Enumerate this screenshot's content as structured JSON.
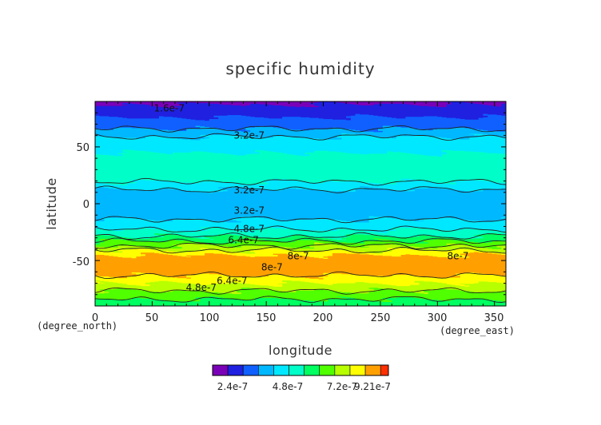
{
  "chart_data": {
    "type": "heatmap",
    "title": "specific humidity",
    "xlabel": "longitude",
    "ylabel": "latitude",
    "x_unit": "(degree_east)",
    "y_unit": "(degree_north)",
    "xlim": [
      0,
      360
    ],
    "ylim": [
      -90,
      90
    ],
    "x_ticks": [
      "0",
      "50",
      "100",
      "150",
      "200",
      "250",
      "300",
      "350"
    ],
    "y_ticks": [
      "-50",
      "0",
      "50"
    ],
    "colorbar": {
      "labels": [
        "2.4e-7",
        "4.8e-7",
        "7.2e-7",
        "9.21e-7"
      ],
      "levels": [
        0,
        8e-08,
        1.6e-07,
        2.4e-07,
        3.2e-07,
        4e-07,
        4.8e-07,
        5.6e-07,
        6.4e-07,
        7.2e-07,
        8e-07,
        8.8e-07,
        9.21e-07
      ],
      "colors": [
        "#7a00b8",
        "#2020e0",
        "#1060ff",
        "#00b8ff",
        "#00e8ff",
        "#00ffc8",
        "#00ff60",
        "#50ff00",
        "#b8ff00",
        "#ffff00",
        "#ffa000",
        "#ff3000",
        "#ff1030",
        "#ffa0a8"
      ]
    },
    "zonal_profile": {
      "latitude": [
        -90,
        -85,
        -80,
        -75,
        -70,
        -65,
        -60,
        -55,
        -50,
        -45,
        -40,
        -35,
        -30,
        -25,
        -20,
        -15,
        -10,
        -5,
        0,
        5,
        10,
        15,
        20,
        25,
        30,
        35,
        40,
        45,
        50,
        55,
        60,
        65,
        70,
        75,
        80,
        85,
        90
      ],
      "value": [
        5e-07,
        5.5e-07,
        6e-07,
        6.6e-07,
        7.2e-07,
        7.8e-07,
        8.3e-07,
        8.6e-07,
        8.6e-07,
        8e-07,
        7e-07,
        6e-07,
        5e-07,
        4.3e-07,
        3.7e-07,
        3.3e-07,
        2.9e-07,
        2.7e-07,
        2.7e-07,
        2.8e-07,
        3e-07,
        3.4e-07,
        4.1e-07,
        4.4e-07,
        4.4e-07,
        4.3e-07,
        4.2e-07,
        4e-07,
        3.9e-07,
        3.6e-07,
        3.1e-07,
        2.5e-07,
        2e-07,
        1.7e-07,
        1.3e-07,
        9e-08,
        7e-08
      ]
    },
    "contour_labels": [
      {
        "text": "3.2e-7",
        "lon": 135,
        "lat": 60
      },
      {
        "text": "3.2e-7",
        "lon": 135,
        "lat": 12
      },
      {
        "text": "3.2e-7",
        "lon": 135,
        "lat": -6
      },
      {
        "text": "4.8e-7",
        "lon": 135,
        "lat": -22
      },
      {
        "text": "6.4e-7",
        "lon": 130,
        "lat": -32
      },
      {
        "text": "8e-7",
        "lon": 178,
        "lat": -46
      },
      {
        "text": "8e-7",
        "lon": 155,
        "lat": -56
      },
      {
        "text": "8e-7",
        "lon": 318,
        "lat": -46
      },
      {
        "text": "6.4e-7",
        "lon": 120,
        "lat": -68
      },
      {
        "text": "4.8e-7",
        "lon": 93,
        "lat": -74
      },
      {
        "text": "1.6e-7",
        "lon": 65,
        "lat": 84
      }
    ],
    "grid": false,
    "legend": "bottom"
  }
}
